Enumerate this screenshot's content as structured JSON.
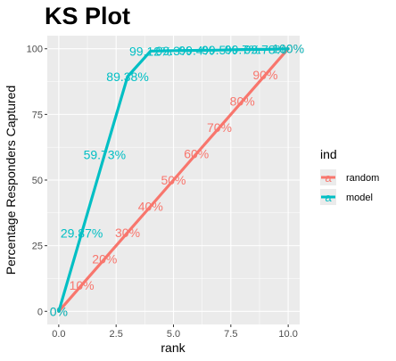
{
  "chart_data": {
    "type": "line",
    "title": "KS Plot",
    "xlabel": "rank",
    "ylabel": "Percentage Responders Captured",
    "xlim": [
      -0.5,
      10.5
    ],
    "ylim": [
      -5,
      105
    ],
    "x_ticks": [
      0.0,
      2.5,
      5.0,
      7.5,
      10.0
    ],
    "x_tick_labels": [
      "0.0",
      "2.5",
      "5.0",
      "7.5",
      "10.0"
    ],
    "y_ticks": [
      0,
      25,
      50,
      75,
      100
    ],
    "y_tick_labels": [
      "0",
      "25",
      "50",
      "75",
      "100"
    ],
    "grid": true,
    "legend": {
      "title": "ind",
      "position": "right"
    },
    "series": [
      {
        "name": "random",
        "color": "#f8766d",
        "x": [
          0,
          1,
          2,
          3,
          4,
          5,
          6,
          7,
          8,
          9,
          10
        ],
        "y": [
          0,
          10,
          20,
          30,
          40,
          50,
          60,
          70,
          80,
          90,
          100
        ],
        "labels": [
          "0%",
          "10%",
          "20%",
          "30%",
          "40%",
          "50%",
          "60%",
          "70%",
          "80%",
          "90%",
          "100%"
        ]
      },
      {
        "name": "model",
        "color": "#00bfc4",
        "x": [
          0,
          1,
          2,
          3,
          4,
          5,
          6,
          7,
          8,
          9,
          10
        ],
        "y": [
          0,
          29.87,
          59.73,
          89.38,
          99.12,
          99.3,
          99.4,
          99.5,
          99.7,
          99.78,
          100
        ],
        "labels": [
          "0%",
          "29.87%",
          "59.73%",
          "89.38%",
          "99.12%",
          "99.3%",
          "99.4%",
          "99.5%",
          "99.7%",
          "99.78%",
          "100%"
        ]
      }
    ]
  }
}
